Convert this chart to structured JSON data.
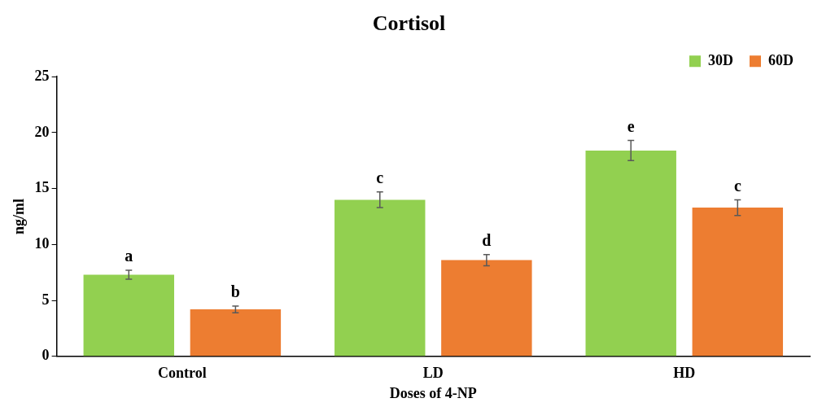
{
  "chart_data": {
    "type": "bar",
    "title": "Cortisol",
    "xlabel": "Doses of 4-NP",
    "ylabel": "ng/ml",
    "categories": [
      "Control",
      "LD",
      "HD"
    ],
    "series": [
      {
        "name": "30D",
        "color": "#92d050",
        "values": [
          7.3,
          14.0,
          18.4
        ],
        "errors": [
          0.4,
          0.7,
          0.9
        ],
        "value_labels": [
          "a",
          "c",
          "e"
        ]
      },
      {
        "name": "60D",
        "color": "#ed7d31",
        "values": [
          4.2,
          8.6,
          13.3
        ],
        "errors": [
          0.3,
          0.5,
          0.7
        ],
        "value_labels": [
          "b",
          "d",
          "c"
        ]
      }
    ],
    "ylim": [
      0,
      25
    ],
    "yticks": [
      0,
      5,
      10,
      15,
      20,
      25
    ],
    "grid": false,
    "legend": "top right"
  }
}
